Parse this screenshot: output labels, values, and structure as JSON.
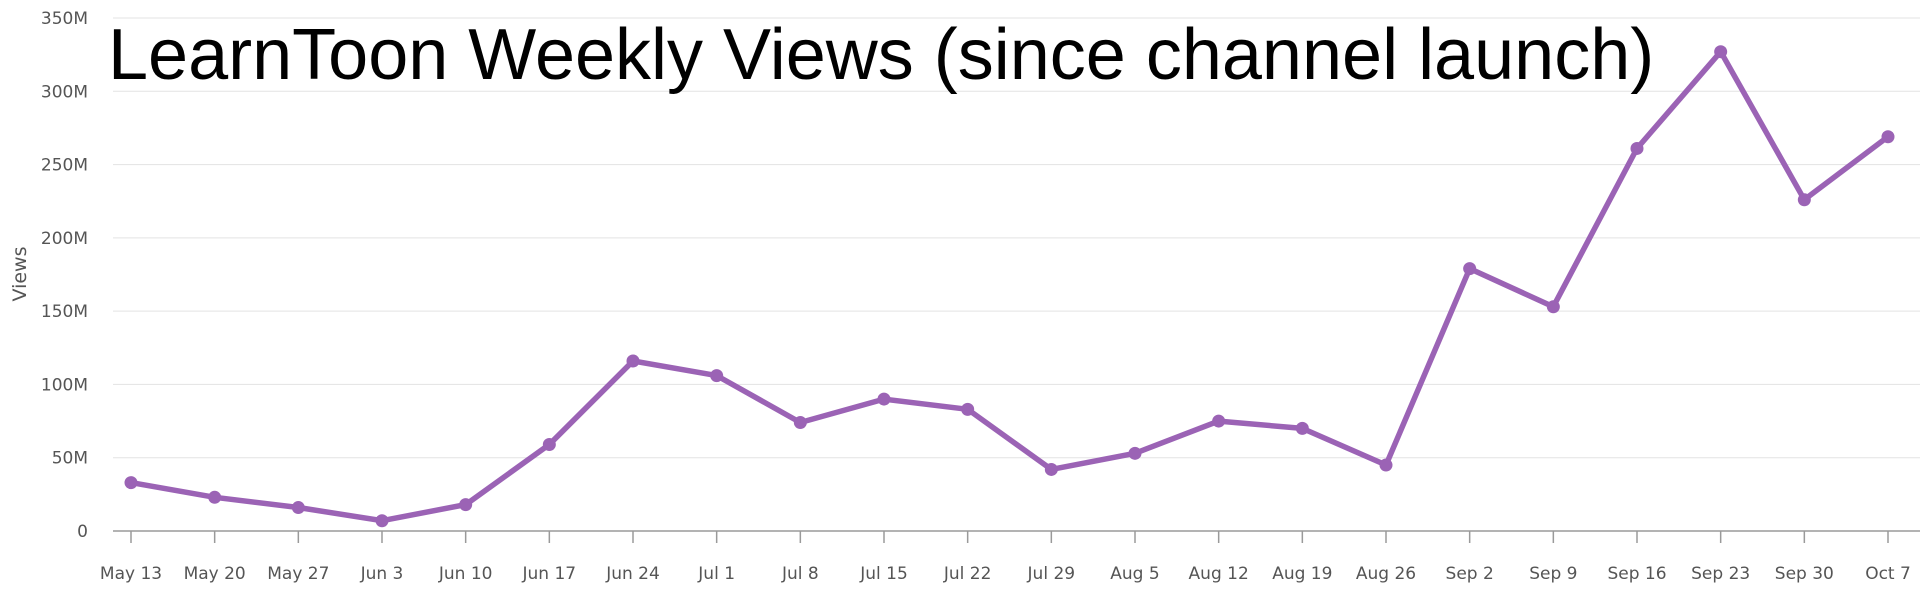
{
  "chart_data": {
    "type": "line",
    "title": "LearnToon Weekly Views (since channel launch)",
    "xlabel": "",
    "ylabel": "Views",
    "categories": [
      "May 13",
      "May 20",
      "May 27",
      "Jun 3",
      "Jun 10",
      "Jun 17",
      "Jun 24",
      "Jul 1",
      "Jul 8",
      "Jul 15",
      "Jul 22",
      "Jul 29",
      "Aug 5",
      "Aug 12",
      "Aug 19",
      "Aug 26",
      "Sep 2",
      "Sep 9",
      "Sep 16",
      "Sep 23",
      "Sep 30",
      "Oct 7"
    ],
    "series": [
      {
        "color": "#9b63b5",
        "values": [
          33000000,
          23000000,
          16000000,
          7000000,
          18000000,
          59000000,
          116000000,
          106000000,
          74000000,
          90000000,
          83000000,
          42000000,
          53000000,
          75000000,
          70000000,
          45000000,
          179000000,
          153000000,
          261000000,
          327000000,
          226000000,
          269000000
        ]
      }
    ],
    "ylim": [
      0,
      350000000
    ],
    "yticks": [
      0,
      50000000,
      100000000,
      150000000,
      200000000,
      250000000,
      300000000,
      350000000
    ],
    "ytick_labels": [
      "0",
      "50M",
      "100M",
      "150M",
      "200M",
      "250M",
      "300M",
      "350M"
    ],
    "grid": true,
    "legend": "none"
  }
}
